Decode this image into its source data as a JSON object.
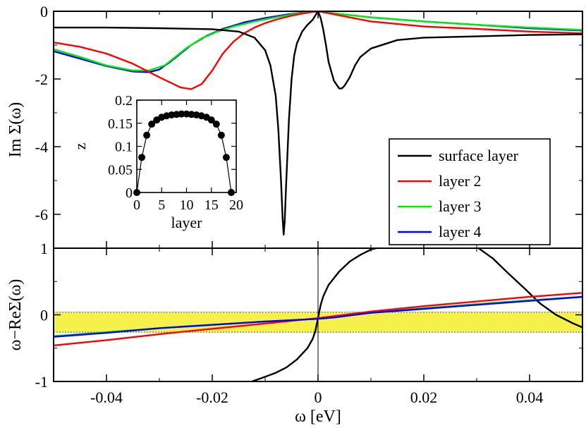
{
  "chart_data": [
    {
      "id": "top",
      "type": "line",
      "ylabel": "Im Σ(ω)",
      "xlim": [
        -0.05,
        0.05
      ],
      "ylim": [
        -7,
        0
      ],
      "yticks": [
        0,
        -2,
        -4,
        -6
      ],
      "ytick_labels": [
        "0",
        "-2",
        "-4",
        "-6"
      ],
      "legend": {
        "position": "bottom-right",
        "entries": [
          {
            "name": "surface layer",
            "color": "#000000"
          },
          {
            "name": "layer 2",
            "color": "#ff0000"
          },
          {
            "name": "layer 3",
            "color": "#00ee00"
          },
          {
            "name": "layer 4",
            "color": "#0000ff"
          }
        ]
      },
      "series": [
        {
          "name": "surface layer",
          "color": "#000000",
          "x": [
            -0.05,
            -0.04,
            -0.03,
            -0.02,
            -0.015,
            -0.012,
            -0.01,
            -0.009,
            -0.008,
            -0.0075,
            -0.007,
            -0.0067,
            -0.0065,
            -0.0063,
            -0.006,
            -0.0055,
            -0.005,
            -0.0045,
            -0.004,
            -0.003,
            -0.002,
            -0.001,
            -0.0005,
            0,
            0.0005,
            0.001,
            0.0015,
            0.002,
            0.003,
            0.004,
            0.0045,
            0.005,
            0.006,
            0.007,
            0.008,
            0.01,
            0.015,
            0.02,
            0.03,
            0.04,
            0.05
          ],
          "y": [
            -0.48,
            -0.48,
            -0.5,
            -0.53,
            -0.6,
            -0.78,
            -1.15,
            -1.6,
            -2.5,
            -3.5,
            -5.0,
            -6.1,
            -6.6,
            -6.2,
            -5.0,
            -3.2,
            -2.0,
            -1.3,
            -0.95,
            -0.6,
            -0.4,
            -0.25,
            -0.12,
            0.0,
            -0.2,
            -0.55,
            -1.0,
            -1.5,
            -2.05,
            -2.28,
            -2.28,
            -2.2,
            -1.95,
            -1.6,
            -1.35,
            -1.1,
            -0.85,
            -0.78,
            -0.74,
            -0.7,
            -0.68
          ]
        },
        {
          "name": "layer 2",
          "color": "#ff0000",
          "x": [
            -0.05,
            -0.045,
            -0.04,
            -0.035,
            -0.03,
            -0.026,
            -0.024,
            -0.022,
            -0.02,
            -0.018,
            -0.016,
            -0.014,
            -0.012,
            -0.01,
            -0.008,
            -0.005,
            -0.002,
            0,
            0.002,
            0.005,
            0.01,
            0.02,
            0.03,
            0.04,
            0.05
          ],
          "y": [
            -0.92,
            -1.05,
            -1.25,
            -1.55,
            -1.95,
            -2.25,
            -2.3,
            -2.15,
            -1.75,
            -1.25,
            -0.9,
            -0.65,
            -0.48,
            -0.35,
            -0.25,
            -0.13,
            -0.04,
            0.0,
            -0.06,
            -0.15,
            -0.3,
            -0.45,
            -0.52,
            -0.6,
            -0.65
          ]
        },
        {
          "name": "layer 3",
          "color": "#00ee00",
          "x": [
            -0.05,
            -0.045,
            -0.04,
            -0.035,
            -0.032,
            -0.029,
            -0.027,
            -0.025,
            -0.022,
            -0.019,
            -0.016,
            -0.012,
            -0.008,
            -0.004,
            0,
            0.004,
            0.01,
            0.02,
            0.03,
            0.04,
            0.05
          ],
          "y": [
            -1.12,
            -1.35,
            -1.6,
            -1.75,
            -1.75,
            -1.6,
            -1.35,
            -1.1,
            -0.8,
            -0.6,
            -0.45,
            -0.3,
            -0.18,
            -0.07,
            0.0,
            -0.08,
            -0.18,
            -0.3,
            -0.4,
            -0.48,
            -0.55
          ]
        },
        {
          "name": "layer 4",
          "color": "#0000ff",
          "x": [
            -0.05,
            -0.045,
            -0.04,
            -0.035,
            -0.032,
            -0.03,
            -0.028,
            -0.026,
            -0.024,
            -0.021,
            -0.018,
            -0.014,
            -0.01,
            -0.006,
            -0.003,
            0,
            0.004,
            0.01,
            0.02,
            0.03,
            0.04,
            0.05
          ],
          "y": [
            -1.18,
            -1.4,
            -1.62,
            -1.78,
            -1.8,
            -1.72,
            -1.5,
            -1.25,
            -1.0,
            -0.72,
            -0.52,
            -0.33,
            -0.2,
            -0.1,
            -0.04,
            0.0,
            -0.08,
            -0.18,
            -0.3,
            -0.4,
            -0.5,
            -0.57
          ]
        }
      ]
    },
    {
      "id": "inset",
      "type": "scatter",
      "xlabel": "layer",
      "ylabel": "z",
      "xlim": [
        0,
        20
      ],
      "ylim": [
        0,
        0.2
      ],
      "xticks": [
        0,
        5,
        10,
        15,
        20
      ],
      "xtick_labels": [
        "0",
        "5",
        "10",
        "15",
        "20"
      ],
      "yticks": [
        0,
        0.05,
        0.1,
        0.15,
        0.2
      ],
      "ytick_labels": [
        "0",
        "0.05",
        "0.1",
        "0.15",
        "0.2"
      ],
      "x": [
        0,
        1,
        2,
        3,
        4,
        5,
        6,
        7,
        8,
        9,
        10,
        11,
        12,
        13,
        14,
        15,
        16,
        17,
        18,
        19
      ],
      "y": [
        0.0,
        0.076,
        0.124,
        0.148,
        0.157,
        0.163,
        0.166,
        0.168,
        0.169,
        0.17,
        0.17,
        0.169,
        0.168,
        0.166,
        0.163,
        0.157,
        0.148,
        0.124,
        0.076,
        0.0
      ]
    },
    {
      "id": "bottom",
      "type": "line",
      "xlabel": "ω [eV]",
      "ylabel": "ω−ReΣ(ω)",
      "xlim": [
        -0.05,
        0.05
      ],
      "ylim": [
        -1,
        1
      ],
      "xticks": [
        -0.04,
        -0.02,
        0,
        0.02,
        0.04
      ],
      "xtick_labels": [
        "-0.04",
        "-0.02",
        "0",
        "0.02",
        "0.04"
      ],
      "yticks": [
        1,
        0,
        -1
      ],
      "ytick_labels": [
        "1",
        "0",
        "-1"
      ],
      "band": {
        "y0": -0.26,
        "y1": 0.04,
        "color": "#f5f04a"
      },
      "series": [
        {
          "name": "surface layer",
          "color": "#000000",
          "x": [
            -0.0125,
            -0.01,
            -0.008,
            -0.006,
            -0.004,
            -0.002,
            -0.001,
            -0.0005,
            0,
            0.0005,
            0.001,
            0.002,
            0.004,
            0.006,
            0.008,
            0.01,
            0.012,
            0.03,
            0.033,
            0.036,
            0.039,
            0.042,
            0.045,
            0.048,
            0.05
          ],
          "y": [
            -1.0,
            -0.93,
            -0.87,
            -0.79,
            -0.67,
            -0.5,
            -0.36,
            -0.24,
            -0.05,
            0.15,
            0.28,
            0.45,
            0.65,
            0.8,
            0.9,
            0.98,
            1.02,
            1.02,
            0.85,
            0.62,
            0.4,
            0.17,
            0.0,
            -0.12,
            -0.19
          ]
        },
        {
          "name": "layer 2",
          "color": "#ff0000",
          "x": [
            -0.05,
            -0.04,
            -0.03,
            -0.02,
            -0.01,
            0,
            0.01,
            0.02,
            0.03,
            0.04,
            0.05
          ],
          "y": [
            -0.46,
            -0.38,
            -0.29,
            -0.21,
            -0.13,
            -0.05,
            0.05,
            0.13,
            0.2,
            0.27,
            0.33
          ]
        },
        {
          "name": "layer 3",
          "color": "#00ee00",
          "x": [
            -0.05,
            -0.04,
            -0.03,
            -0.02,
            -0.01,
            0,
            0.003,
            0.01,
            0.02,
            0.03,
            0.04,
            0.05
          ],
          "y": [
            -0.32,
            -0.26,
            -0.2,
            -0.15,
            -0.1,
            -0.06,
            -0.04,
            0.04,
            0.1,
            0.16,
            0.22,
            0.27
          ]
        },
        {
          "name": "layer 4",
          "color": "#0000ff",
          "x": [
            -0.05,
            -0.04,
            -0.03,
            -0.02,
            -0.01,
            0,
            0.003,
            0.01,
            0.02,
            0.03,
            0.04,
            0.05
          ],
          "y": [
            -0.33,
            -0.27,
            -0.2,
            -0.15,
            -0.1,
            -0.06,
            -0.04,
            0.03,
            0.09,
            0.15,
            0.21,
            0.27
          ]
        }
      ]
    }
  ]
}
